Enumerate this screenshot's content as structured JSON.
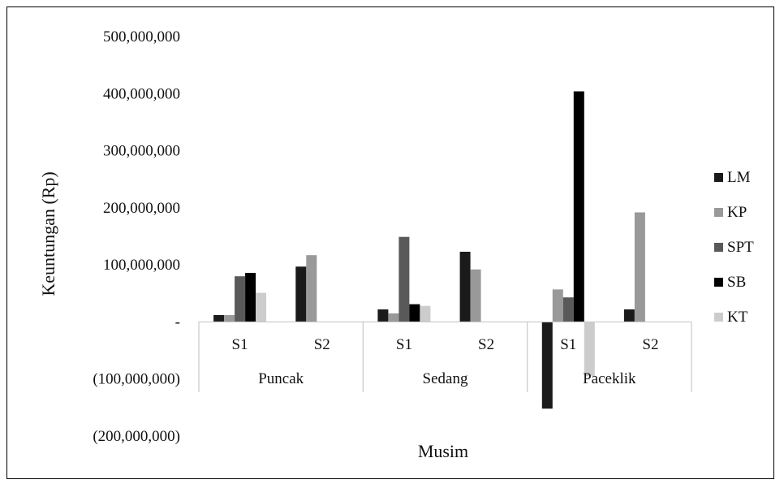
{
  "chart_data": {
    "type": "bar",
    "xlabel": "Musim",
    "ylabel": "Keuntungan (Rp)",
    "ylim": [
      -200000000,
      500000000
    ],
    "yticks": [
      {
        "value": 500000000,
        "label": "500,000,000"
      },
      {
        "value": 400000000,
        "label": "400,000,000"
      },
      {
        "value": 300000000,
        "label": "300,000,000"
      },
      {
        "value": 200000000,
        "label": "200,000,000"
      },
      {
        "value": 100000000,
        "label": "100,000,000"
      },
      {
        "value": 0,
        "label": "-"
      },
      {
        "value": -100000000,
        "label": "(100,000,000)"
      },
      {
        "value": -200000000,
        "label": "(200,000,000)"
      }
    ],
    "groups": [
      "Puncak",
      "Sedang",
      "Paceklik"
    ],
    "categories": [
      "S1",
      "S2",
      "S1",
      "S2",
      "S1",
      "S2"
    ],
    "grid": false,
    "legend_position": "right",
    "series": [
      {
        "name": "LM",
        "color": "#1a1a1a",
        "values": [
          12000000,
          97000000,
          22000000,
          123000000,
          -152000000,
          22000000
        ]
      },
      {
        "name": "KP",
        "color": "#999999",
        "values": [
          12000000,
          117000000,
          15000000,
          92000000,
          57000000,
          192000000
        ]
      },
      {
        "name": "SPT",
        "color": "#595959",
        "values": [
          80000000,
          0,
          149000000,
          0,
          43000000,
          0
        ]
      },
      {
        "name": "SB",
        "color": "#000000",
        "values": [
          86000000,
          0,
          31000000,
          0,
          404000000,
          0
        ]
      },
      {
        "name": "KT",
        "color": "#cccccc",
        "values": [
          51000000,
          0,
          28000000,
          0,
          -95000000,
          0
        ]
      }
    ]
  }
}
